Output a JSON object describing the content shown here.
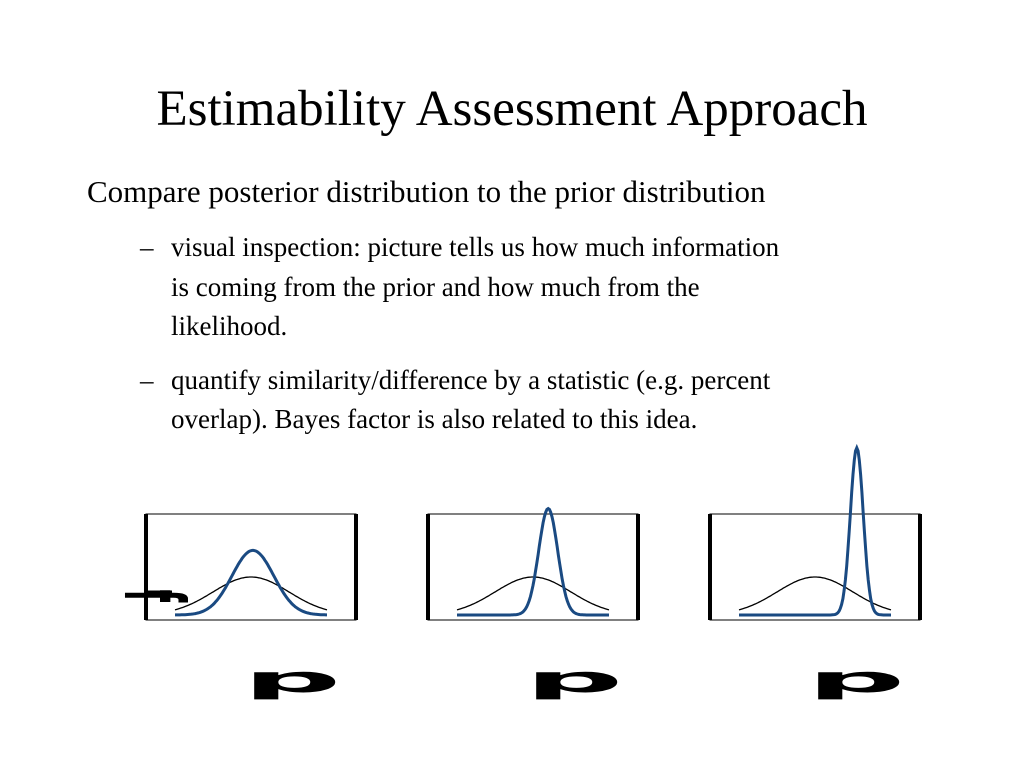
{
  "slide": {
    "title": "Estimability Assessment Approach",
    "main_point": "Compare posterior distribution to the prior distribution",
    "sub_points": [
      {
        "bullet": "–",
        "lines": [
          "visual inspection:  picture tells us how much information",
          "is coming from the prior and how much from the",
          "likelihood."
        ]
      },
      {
        "bullet": "–",
        "lines": [
          "quantify similarity/difference by a statistic (e.g. percent",
          "overlap).  Bayes factor is also related to this idea."
        ]
      }
    ]
  },
  "figure": {
    "y_axis_glyph": "f",
    "x_axis_glyph": "p",
    "colors": {
      "prior": "#000000",
      "posterior": "#1a4a82",
      "frame": "#000000"
    },
    "panels": [
      {
        "prior": {
          "mean": 0,
          "sd": 1,
          "peak": 1.0
        },
        "posterior": {
          "mean": 0.05,
          "sd": 0.55,
          "peak": 1.7
        }
      },
      {
        "prior": {
          "mean": 0,
          "sd": 1,
          "peak": 1.0
        },
        "posterior": {
          "mean": 0.4,
          "sd": 0.25,
          "peak": 2.8
        }
      },
      {
        "prior": {
          "mean": 0,
          "sd": 1,
          "peak": 1.0
        },
        "posterior": {
          "mean": 1.1,
          "sd": 0.17,
          "peak": 4.4
        }
      }
    ]
  }
}
